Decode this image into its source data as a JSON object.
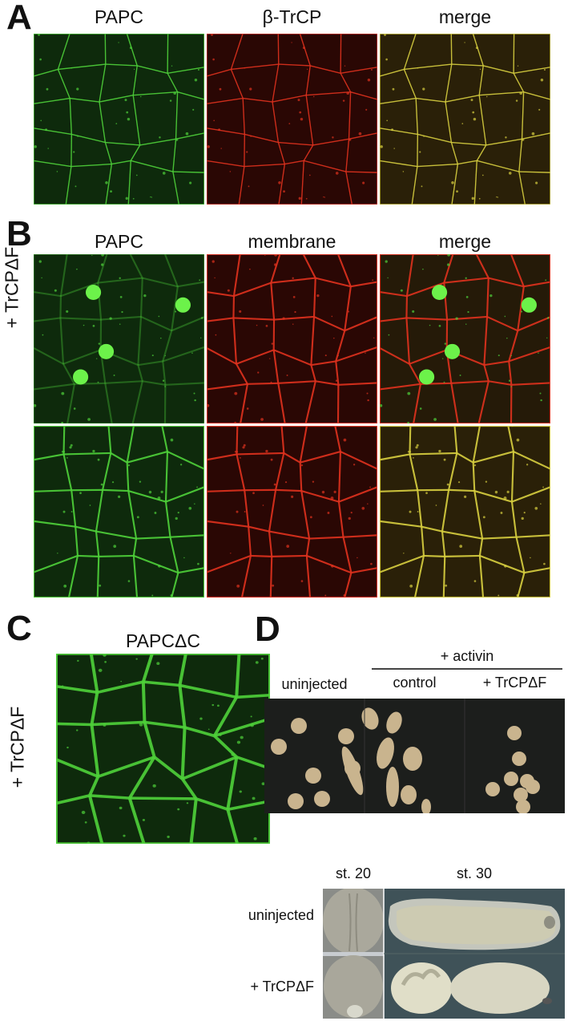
{
  "panels": {
    "A": {
      "letter": "A",
      "columns": [
        "PAPC",
        "β-TrCP",
        "merge"
      ]
    },
    "B": {
      "letter": "B",
      "columns": [
        "PAPC",
        "membrane",
        "merge"
      ],
      "row_label": "+ TrCPΔF"
    },
    "C": {
      "letter": "C",
      "title": "PAPCΔC",
      "row_label": "+ TrCPΔF"
    },
    "D": {
      "letter": "D",
      "group_label": "+ activin",
      "columns": [
        "uninjected",
        "control",
        "+ TrCPΔF"
      ],
      "stages": [
        "st. 20",
        "st. 30"
      ],
      "rows": [
        "uninjected",
        "+ TrCPΔF"
      ]
    }
  },
  "colors": {
    "green": "#4fd23a",
    "red": "#e0321e",
    "yellow": "#d8d040"
  }
}
